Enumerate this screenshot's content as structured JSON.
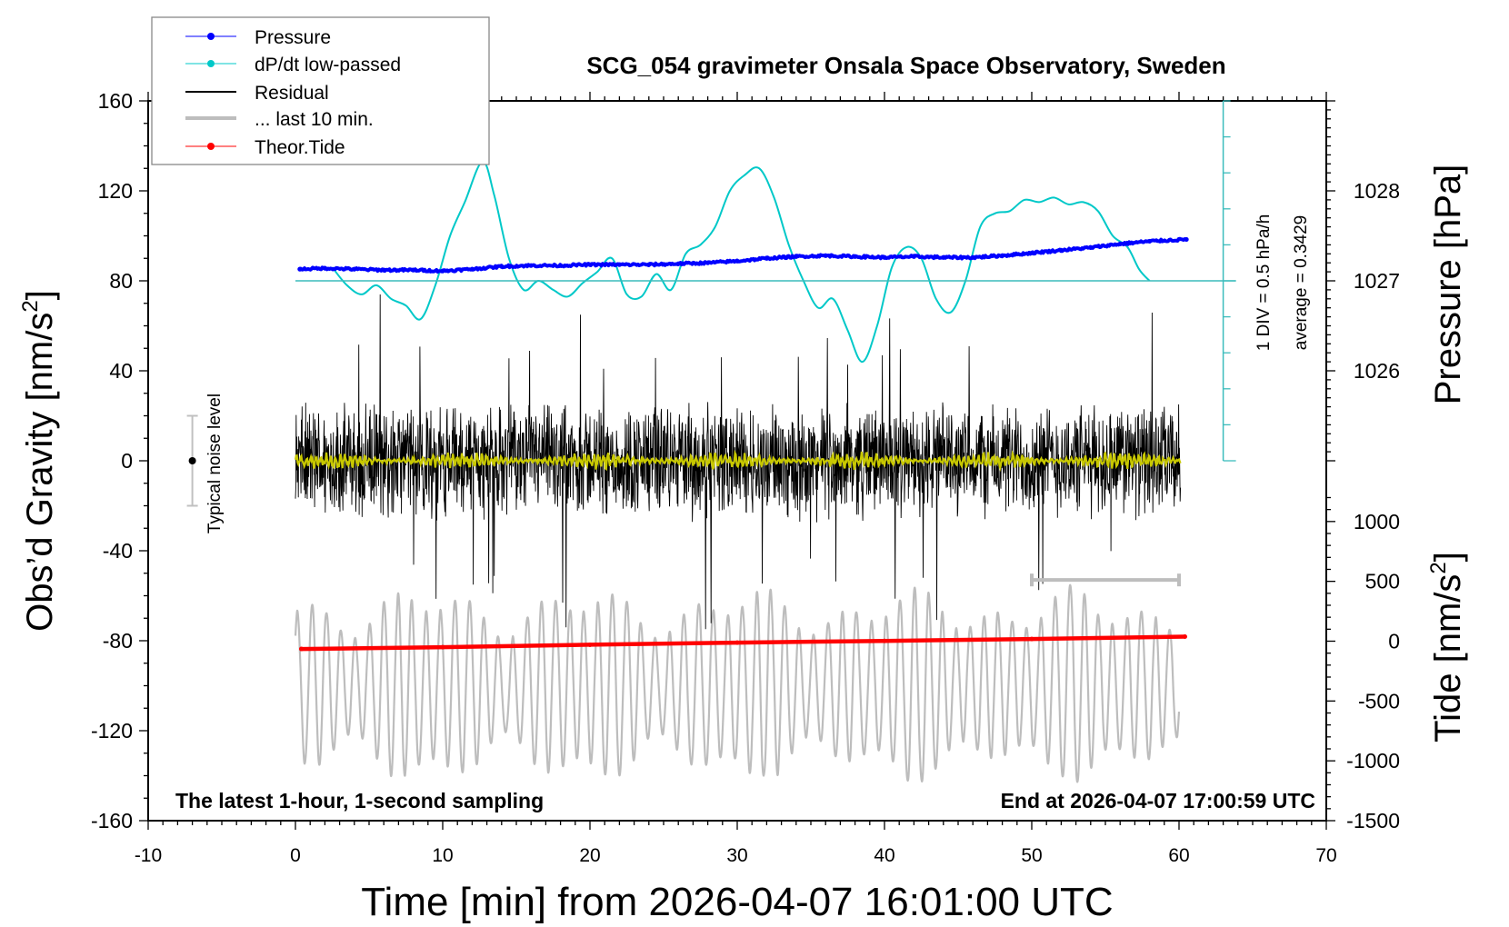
{
  "chart_data": {
    "type": "line",
    "title": "SCG_054 gravimeter Onsala Space Observatory, Sweden",
    "xlabel": "Time [min] from 2026-04-07 16:01:00 UTC",
    "ylabel_left": "Obs'd Gravity [nm/s2]",
    "ylabel_left_main": "Obs’d Gravity [nm/s",
    "ylabel_left_sup": "2",
    "ylabel_left_end": "]",
    "ylabel_right_pressure": "Pressure [hPa]",
    "ylabel_right_tide_main": "Tide [nm/s",
    "ylabel_right_tide_sup": "2",
    "ylabel_right_tide_end": "]",
    "xlim": [
      -10,
      70
    ],
    "ylim": [
      -160,
      160
    ],
    "x_ticks": [
      -10,
      0,
      10,
      20,
      30,
      40,
      50,
      60,
      70
    ],
    "x_tick_labels": [
      "-10",
      "0",
      "10",
      "20",
      "30",
      "40",
      "50",
      "60",
      "70"
    ],
    "y_ticks": [
      160,
      120,
      80,
      40,
      0,
      -40,
      -80,
      -120,
      -160
    ],
    "y_tick_labels": [
      "160",
      "120",
      "80",
      "40",
      "0",
      "-40",
      "-80",
      "-120",
      "-160"
    ],
    "pressure_axis": {
      "ticks": [
        1028,
        1027,
        1026
      ],
      "tick_labels": [
        "1028",
        "1027",
        "1026"
      ],
      "ref_value": 1027,
      "ref_gravity": 80,
      "gravity_per_hPa": 40
    },
    "tide_axis": {
      "ticks": [
        1000,
        500,
        0,
        -500,
        -1000,
        -1500
      ],
      "tick_labels": [
        "1000",
        "500",
        "0",
        "-500",
        "-1000",
        "-1500"
      ],
      "ref_value": -1500,
      "ref_gravity": -160,
      "gravity_per_unit": 0.0532
    },
    "annotations": {
      "bottom_left": "The latest 1-hour, 1-second sampling",
      "bottom_right": "End at 2026-04-07 17:00:59 UTC",
      "noise_label": "Typical noise level",
      "dpdt_scale": "1 DIV = 0.5 hPa/h",
      "dpdt_average": "average = 0.3429"
    },
    "noise_bar": {
      "x": -7,
      "center": 0,
      "half_range": 20
    },
    "last10_bracket": {
      "x_start": 50,
      "x_end": 60,
      "y": -53
    },
    "dpdt_scale_axis": {
      "x": 63,
      "y_top": 160,
      "y_bottom": 0,
      "baseline": 80,
      "divisions": 10
    },
    "legend": {
      "position": "top-left",
      "entries": [
        {
          "label": "Pressure",
          "color": "#0000ff",
          "marker": true,
          "width": 1
        },
        {
          "label": "dP/dt low-passed",
          "color": "#00c8c8",
          "marker": true,
          "width": 1
        },
        {
          "label": "Residual",
          "color": "#000000",
          "marker": false,
          "width": 2
        },
        {
          "label": "... last 10 min.",
          "color": "#bdbdbd",
          "marker": false,
          "width": 4
        },
        {
          "label": "Theor.Tide",
          "color": "#ff0000",
          "marker": true,
          "width": 1
        }
      ]
    },
    "series": [
      {
        "name": "Pressure",
        "axis": "pressure",
        "color": "#0000ff",
        "x": [
          0.3,
          2,
          4,
          6,
          8,
          10,
          12,
          14,
          16,
          18,
          20,
          22,
          24,
          26,
          28,
          30,
          32,
          34,
          36,
          38,
          40,
          42,
          44,
          46,
          48,
          50,
          52,
          54,
          56,
          58,
          60.5
        ],
        "y": [
          1027.13,
          1027.14,
          1027.13,
          1027.12,
          1027.12,
          1027.11,
          1027.13,
          1027.16,
          1027.17,
          1027.17,
          1027.18,
          1027.18,
          1027.18,
          1027.19,
          1027.2,
          1027.22,
          1027.25,
          1027.27,
          1027.28,
          1027.27,
          1027.26,
          1027.27,
          1027.26,
          1027.26,
          1027.28,
          1027.31,
          1027.34,
          1027.37,
          1027.41,
          1027.44,
          1027.46
        ]
      },
      {
        "name": "dP/dt low-passed",
        "axis": "gravity",
        "color": "#00c8c8",
        "x": [
          2.5,
          3.5,
          4.5,
          5.5,
          6.5,
          7.5,
          8.5,
          9.5,
          10.5,
          11.5,
          12.7,
          13.5,
          14.5,
          15.5,
          16.5,
          17.5,
          18.5,
          19.5,
          20.5,
          21.5,
          22.5,
          23.5,
          24.5,
          25.5,
          26.5,
          27.5,
          28.5,
          29.5,
          30.5,
          31.5,
          32.5,
          33.5,
          34.5,
          35.5,
          36.5,
          37.5,
          38.5,
          39.5,
          40.5,
          41.5,
          42.5,
          43.5,
          44.5,
          45.5,
          46.5,
          47.5,
          48.5,
          49.5,
          50.5,
          51.5,
          52.5,
          53.5,
          54.5,
          55.5,
          56.5,
          57.3,
          58
        ],
        "y": [
          86,
          78,
          74,
          78,
          72,
          69,
          63,
          78,
          100,
          115,
          133,
          118,
          90,
          76,
          80,
          76,
          73,
          79,
          84,
          90,
          74,
          73,
          83,
          76,
          92,
          96,
          104,
          120,
          127,
          130,
          117,
          96,
          80,
          68,
          72,
          58,
          44,
          60,
          86,
          95,
          90,
          72,
          66,
          80,
          104,
          110,
          111,
          116,
          115,
          117,
          114,
          115,
          111,
          100,
          95,
          85,
          80
        ]
      },
      {
        "name": "Residual",
        "axis": "gravity",
        "color": "#000000",
        "x_range": [
          0,
          60.1
        ],
        "typical_amplitude": 20,
        "peak_range": [
          -75,
          75
        ]
      },
      {
        "name": "Residual smoothed",
        "axis": "gravity",
        "color": "#c8c800",
        "x_range": [
          0,
          60.1
        ],
        "typical_amplitude": 2
      },
      {
        "name": "... last 10 min.",
        "axis": "gravity",
        "color": "#bdbdbd",
        "x_range": [
          0,
          60
        ],
        "center": -100,
        "typical_amplitude": 30,
        "peak_range": [
          -140,
          -52
        ]
      },
      {
        "name": "Theor.Tide",
        "axis": "tide",
        "color": "#ff0000",
        "x": [
          0.4,
          10,
          20,
          30,
          40,
          50,
          60.4
        ],
        "y": [
          -65,
          -50,
          -30,
          -12,
          2,
          18,
          38
        ]
      }
    ]
  }
}
